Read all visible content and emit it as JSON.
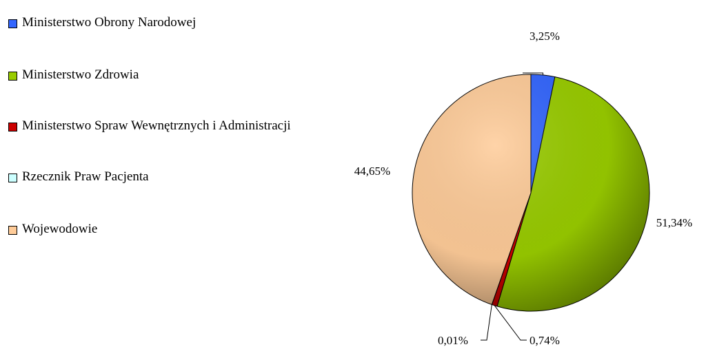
{
  "chart_data": {
    "type": "pie",
    "categories": [
      "Ministerstwo Obrony Narodowej",
      "Ministerstwo Zdrowia",
      "Ministerstwo Spraw Wewnętrznych i Administracji",
      "Rzecznik Praw Pacjenta",
      "Wojewodowie"
    ],
    "values": [
      3.25,
      51.34,
      0.74,
      0.01,
      44.65
    ],
    "value_labels": [
      "3,25%",
      "51,34%",
      "0,74%",
      "0,01%",
      "44,65%"
    ],
    "colors": [
      "#3366ff",
      "#99cc00",
      "#cc0000",
      "#ccffff",
      "#ffcc99"
    ]
  }
}
